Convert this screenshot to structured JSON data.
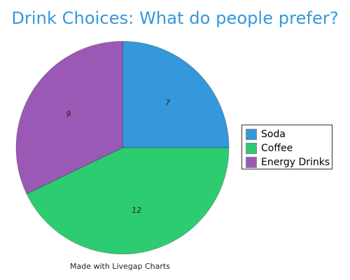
{
  "chart_data": {
    "type": "pie",
    "title": "Drink Choices: What do people prefer?",
    "categories": [
      "Soda",
      "Coffee",
      "Energy Drinks"
    ],
    "values": [
      7,
      12,
      9
    ],
    "data_labels": [
      "7",
      "12",
      "9"
    ],
    "colors": [
      "#3498db",
      "#2ecc71",
      "#9b59b6"
    ],
    "legend_placement": "right"
  },
  "footer": {
    "credit": "Made with Livegap Charts"
  }
}
